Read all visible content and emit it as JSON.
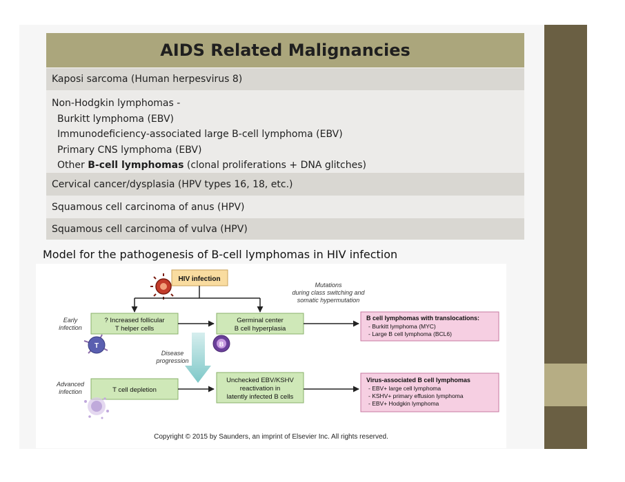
{
  "slide": {
    "title": "AIDS Related Malignancies",
    "rows": {
      "kaposi": "Kaposi sarcoma (Human herpesvirus 8)",
      "nhl": {
        "heading": "Non-Hodgkin lymphomas -",
        "items": [
          "Burkitt lymphoma (EBV)",
          "Immunodeficiency-associated large B-cell lymphoma (EBV)",
          "Primary CNS lymphoma (EBV)"
        ],
        "last_prefix": "Other ",
        "last_bold": "B-cell lymphomas",
        "last_suffix": " (clonal proliferations + DNA glitches)"
      },
      "cervical": "Cervical cancer/dysplasia (HPV types 16, 18, etc.)",
      "anus": "Squamous cell carcinoma of anus (HPV)",
      "vulva": "Squamous cell carcinoma of vulva (HPV)"
    },
    "subtitle": "Model for the pathogenesis of B-cell lymphomas in HIV infection"
  },
  "diagram": {
    "hiv_infection": "HIV infection",
    "mutations_note": [
      "Mutations",
      "during class switching and",
      "somatic hypermutation"
    ],
    "early_infection": [
      "Early",
      "infection"
    ],
    "advanced_infection": [
      "Advanced",
      "infection"
    ],
    "follicular_box": [
      "? Increased follicular",
      "T helper cells"
    ],
    "germinal_box": [
      "Germinal center",
      "B cell hyperplasia"
    ],
    "disease_progression": [
      "Disease",
      "progression"
    ],
    "t_depletion_box": "T cell depletion",
    "ebv_box": [
      "Unchecked EBV/KSHV",
      "reactivation in",
      "latently infected B cells"
    ],
    "translocations_box": {
      "title": "B cell lymphomas with translocations:",
      "items": [
        "- Burkitt lymphoma (MYC)",
        "- Large B cell lymphoma (BCL6)"
      ]
    },
    "virus_box": {
      "title": "Virus-associated B cell lymphomas",
      "items": [
        "- EBV+ large cell lymphoma",
        "- KSHV+ primary effusion lymphoma",
        "- EBV+ Hodgkin lymphoma"
      ]
    },
    "t_cell_label": "T",
    "b_cell_label": "B",
    "copyright": "Copyright © 2015 by Saunders, an imprint of Elsevier Inc. All rights reserved.",
    "colors": {
      "hiv_box": "#f9dca0",
      "green_box": "#cfe8b8",
      "pink_box": "#f6cfe2",
      "progression_arrow": "#8fd1d1"
    }
  }
}
